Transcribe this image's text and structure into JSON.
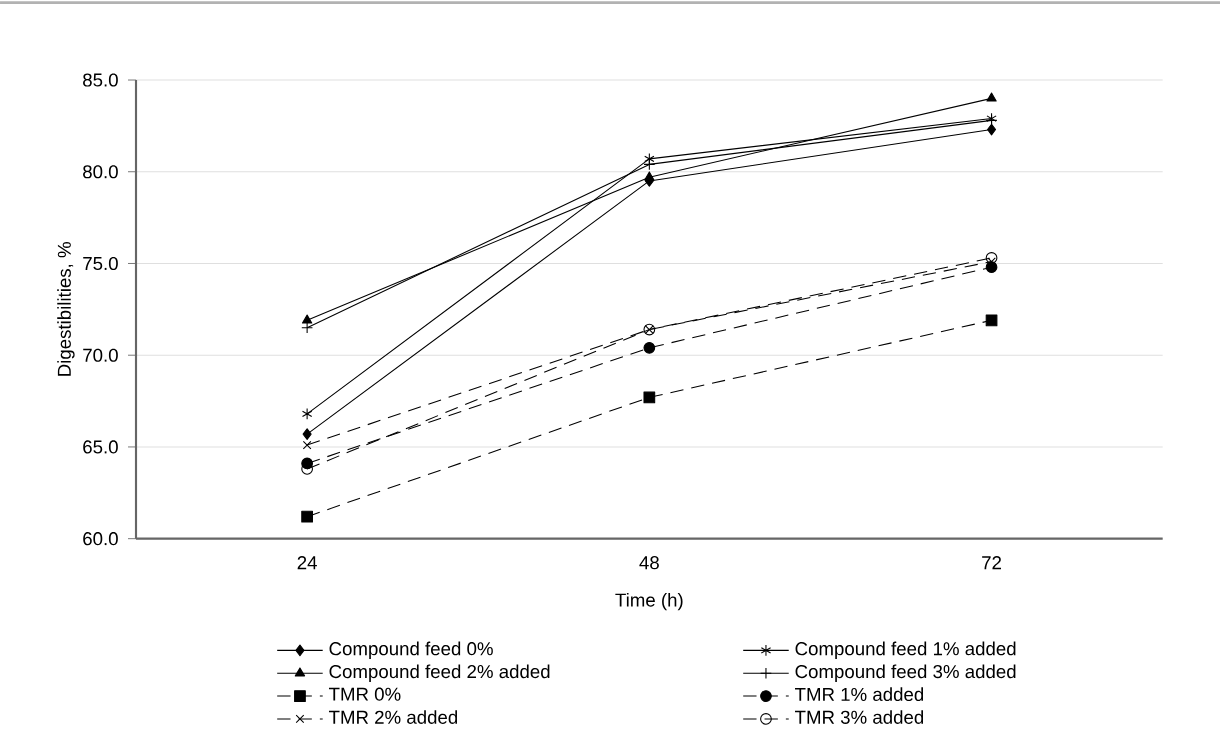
{
  "chart_data": {
    "type": "line",
    "xlabel": "Time (h)",
    "ylabel": "Digestibilities, %",
    "categories": [
      "24",
      "48",
      "72"
    ],
    "ylim": [
      60,
      85
    ],
    "yticks": [
      {
        "value": 60,
        "label": "60.0"
      },
      {
        "value": 65,
        "label": "65.0"
      },
      {
        "value": 70,
        "label": "70.0"
      },
      {
        "value": 75,
        "label": "75.0"
      },
      {
        "value": 80,
        "label": "80.0"
      },
      {
        "value": 85,
        "label": "85.0"
      }
    ],
    "grid": "y",
    "legend": "bottom",
    "series": [
      {
        "name": "Compound feed 0%",
        "color": "#000000",
        "marker": "diamond",
        "line_style": "solid",
        "values": [
          65.7,
          79.5,
          82.3
        ]
      },
      {
        "name": "Compound feed 1% added",
        "color": "#000000",
        "marker": "cross",
        "line_style": "solid",
        "values": [
          66.8,
          80.7,
          82.9
        ]
      },
      {
        "name": "Compound feed 2% added",
        "color": "#000000",
        "marker": "triangle",
        "line_style": "solid",
        "values": [
          71.9,
          79.7,
          84.0
        ]
      },
      {
        "name": "Compound feed 3% added",
        "color": "#000000",
        "marker": "cross",
        "line_style": "solid",
        "values": [
          71.5,
          80.4,
          82.8
        ]
      },
      {
        "name": "TMR 0%",
        "color": "#000000",
        "marker": "square",
        "line_style": "dashed",
        "values": [
          61.2,
          67.7,
          71.9
        ]
      },
      {
        "name": "TMR 1% added",
        "color": "#000000",
        "marker": "circle",
        "line_style": "dashed",
        "values": [
          64.1,
          70.4,
          74.8
        ]
      },
      {
        "name": "TMR 2% added",
        "color": "#000000",
        "marker": "cross",
        "line_style": "dashed",
        "values": [
          65.1,
          71.4,
          75.1
        ]
      },
      {
        "name": "TMR 3% added",
        "color": "#000000",
        "marker": "circle",
        "line_style": "dashed",
        "values": [
          63.8,
          71.4,
          75.3
        ]
      }
    ]
  }
}
